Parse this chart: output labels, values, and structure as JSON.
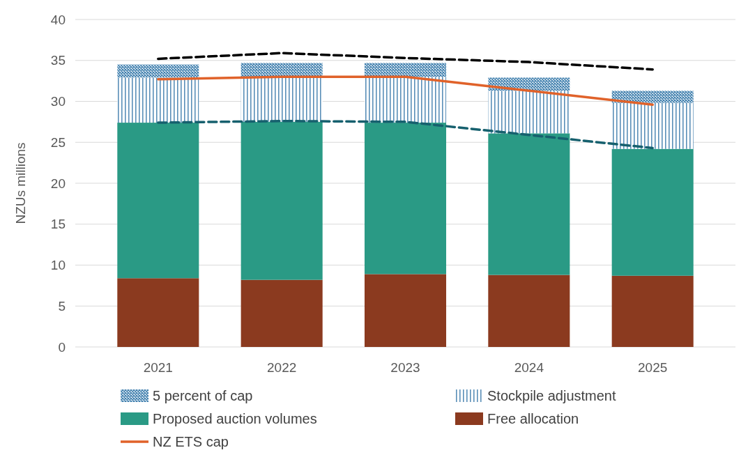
{
  "chart_data": {
    "type": "bar",
    "stacked": true,
    "ylabel": "NZUs millions",
    "categories": [
      "2021",
      "2022",
      "2023",
      "2024",
      "2025"
    ],
    "ylim": [
      0,
      40
    ],
    "yticks": [
      0,
      5,
      10,
      15,
      20,
      25,
      30,
      35,
      40
    ],
    "grid": "y",
    "legend": "bottom",
    "series": [
      {
        "name": "Free allocation",
        "color": "#8b3a1f",
        "values": [
          8.4,
          8.2,
          8.9,
          8.8,
          8.7
        ]
      },
      {
        "name": "Proposed auction volumes",
        "color": "#2a9a85",
        "values": [
          19.0,
          19.3,
          18.5,
          17.3,
          15.5
        ]
      },
      {
        "name": "Stockpile adjustment",
        "color": "#5a8fb8",
        "values": [
          5.5,
          5.5,
          5.6,
          5.2,
          5.6
        ]
      },
      {
        "name": "5 percent of cap",
        "color": "#3f7fae",
        "values": [
          1.6,
          1.7,
          1.7,
          1.6,
          1.5
        ]
      },
      {
        "name": "NZ ETS cap",
        "type": "line",
        "color": "#e0622a",
        "line_style": "solid",
        "values": [
          32.7,
          33.0,
          33.0,
          31.3,
          29.6
        ]
      },
      {
        "type": "line",
        "color": "#000000",
        "line_style": "dashed",
        "values": [
          35.2,
          35.9,
          35.3,
          34.8,
          33.9
        ]
      },
      {
        "type": "line",
        "color": "#16606e",
        "line_style": "dashed",
        "values": [
          27.4,
          27.6,
          27.5,
          25.9,
          24.3
        ]
      }
    ]
  }
}
